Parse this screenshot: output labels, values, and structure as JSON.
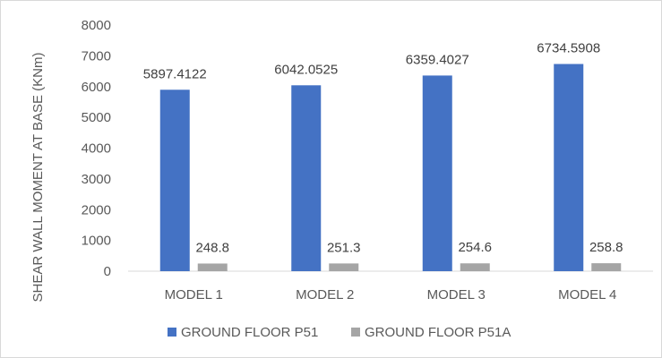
{
  "chart_data": {
    "type": "bar",
    "title": "",
    "xlabel": "",
    "ylabel": "SHEAR WALL MOMENT AT BASE (KNm)",
    "categories": [
      "MODEL 1",
      "MODEL 2",
      "MODEL 3",
      "MODEL 4"
    ],
    "series": [
      {
        "name": "GROUND FLOOR P51",
        "values": [
          5897.4122,
          6042.0525,
          6359.4027,
          6734.5908
        ],
        "labels": [
          "5897.4122",
          "6042.0525",
          "6359.4027",
          "6734.5908"
        ],
        "color": "#4472c4"
      },
      {
        "name": "GROUND FLOOR P51A",
        "values": [
          248.8,
          251.3,
          254.6,
          258.8
        ],
        "labels": [
          "248.8",
          "251.3",
          "254.6",
          "258.8"
        ],
        "color": "#a5a5a5"
      }
    ],
    "ylim": [
      0,
      8000
    ],
    "yticks": [
      0,
      1000,
      2000,
      3000,
      4000,
      5000,
      6000,
      7000,
      8000
    ],
    "grid": false,
    "legend_position": "bottom"
  },
  "colors": {
    "axis_line": "#d9d9d9",
    "text": "#595959"
  }
}
